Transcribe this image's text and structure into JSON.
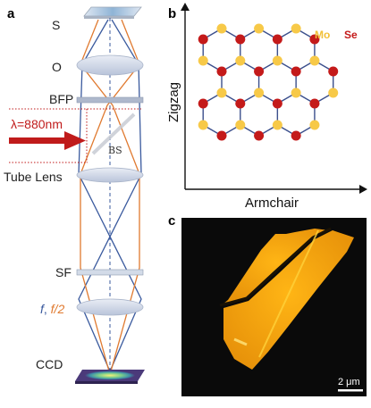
{
  "panel_a": {
    "letter": "a",
    "labels": {
      "sample": "S",
      "objective": "O",
      "bfp": "BFP",
      "wavelength": "λ=880nm",
      "beam_splitter": "BS",
      "tube_lens": "Tube Lens",
      "spatial_filter": "SF",
      "focal_f": "f",
      "focal_sep": ", ",
      "focal_f2": "f/2",
      "camera": "CCD"
    },
    "colors": {
      "blue_path": "#3a5a9e",
      "orange_path": "#e07a30",
      "laser_arrow": "#c01b1b",
      "lens_fill": "#c9d3e6"
    }
  },
  "panel_b": {
    "letter": "b",
    "axis_y": "Zigzag",
    "axis_x": "Armchair",
    "legend_mo": "Mo",
    "legend_se": "Se",
    "colors": {
      "mo": "#f7c948",
      "se": "#c41a1a",
      "bond": "#3b4f8c"
    }
  },
  "panel_c": {
    "letter": "c",
    "scale_bar": "2 μm",
    "colors": {
      "background": "#0a0a0a",
      "flake": "#f2a40c",
      "crack": "#1a1205"
    }
  }
}
